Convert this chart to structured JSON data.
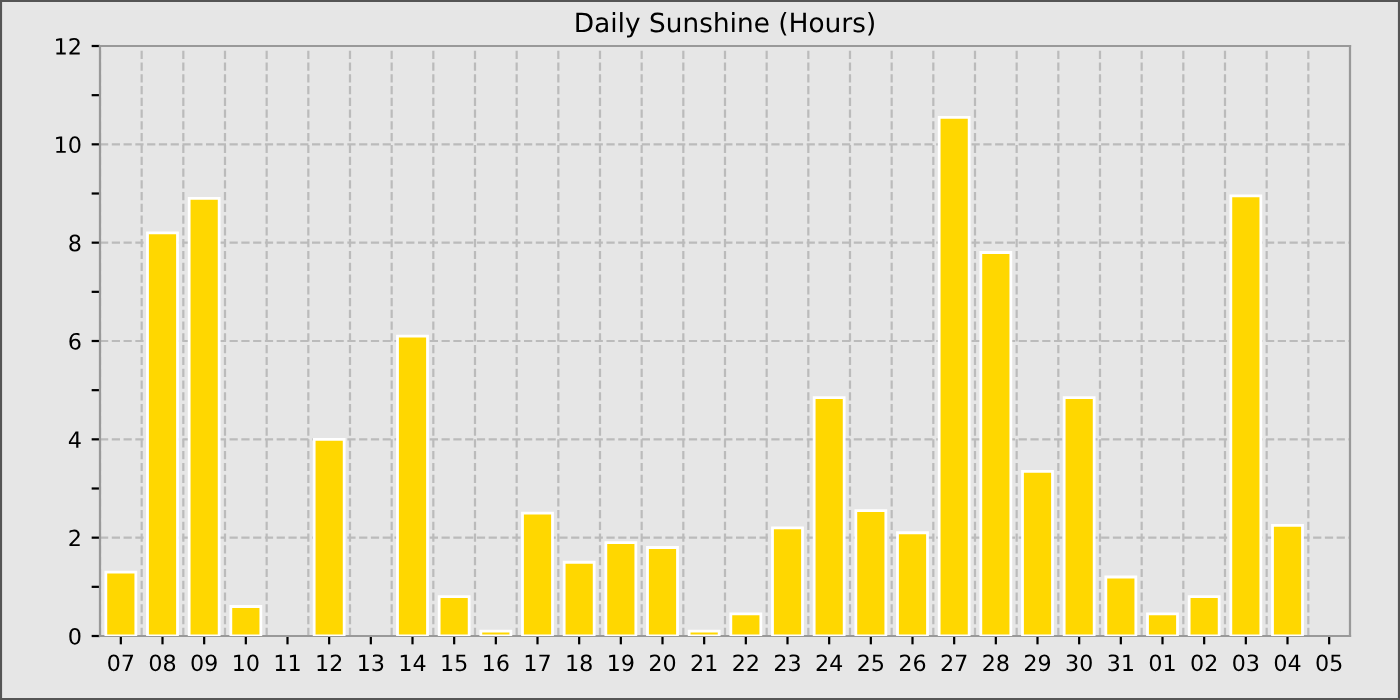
{
  "chart_data": {
    "type": "bar",
    "title": "Daily Sunshine (Hours)",
    "categories": [
      "07",
      "08",
      "09",
      "10",
      "11",
      "12",
      "13",
      "14",
      "15",
      "16",
      "17",
      "18",
      "19",
      "20",
      "21",
      "22",
      "23",
      "24",
      "25",
      "26",
      "27",
      "28",
      "29",
      "30",
      "31",
      "01",
      "02",
      "03",
      "04",
      "05"
    ],
    "values": [
      1.3,
      8.2,
      8.9,
      0.6,
      0,
      4.0,
      0,
      6.1,
      0.8,
      0.1,
      2.5,
      1.5,
      1.9,
      1.8,
      0.1,
      0.45,
      2.2,
      4.85,
      2.55,
      2.1,
      10.55,
      7.8,
      3.35,
      4.85,
      1.2,
      0.45,
      0.8,
      8.95,
      2.25,
      0
    ],
    "color": "#ffd700",
    "ylim": [
      0,
      12
    ],
    "yticks": [
      0,
      {
        "value": 1,
        "label": null
      },
      2,
      {
        "value": 3,
        "label": null
      },
      4,
      {
        "value": 5,
        "label": null
      },
      6,
      {
        "value": 7,
        "label": null
      },
      8,
      {
        "value": 9,
        "label": null
      },
      10,
      {
        "value": 11,
        "label": null
      },
      12
    ],
    "grid": true
  }
}
